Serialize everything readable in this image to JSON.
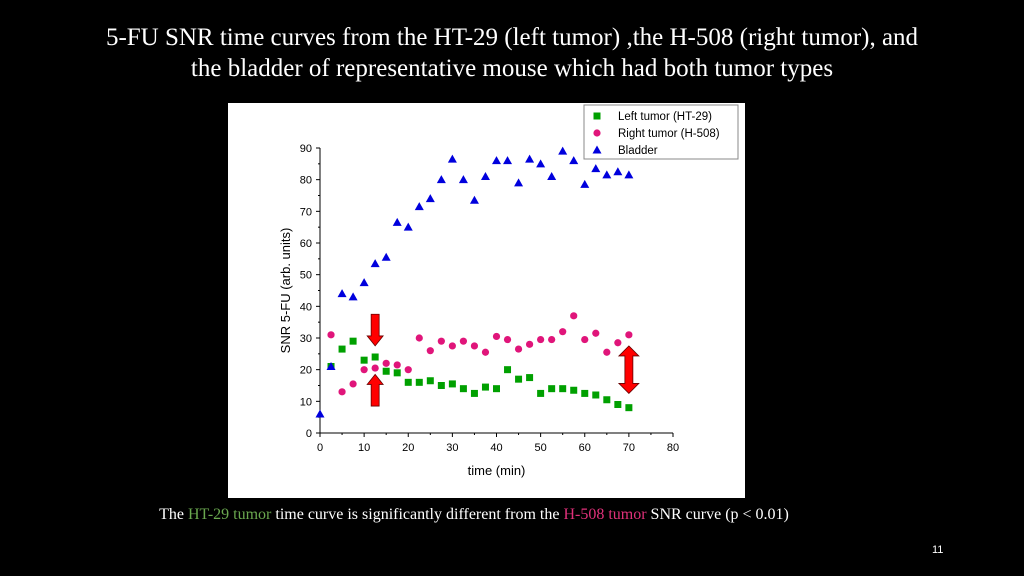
{
  "slide": {
    "title_line1": "5-FU SNR time curves from the HT-29 (left tumor) ,the H-508 (right tumor), and",
    "title_line2": "the bladder of representative mouse which had both tumor types",
    "caption": {
      "prefix": "The ",
      "term1": "HT-29 tumor",
      "middle": " time curve is significantly different from the ",
      "term2": "H-508 tumor",
      "suffix": " SNR curve (p < 0.01)"
    },
    "page_number": "11",
    "colors": {
      "term1": "#6aa84f",
      "term2": "#e0317a"
    }
  },
  "chart_data": {
    "type": "scatter",
    "xlabel": "time (min)",
    "ylabel": "SNR 5-FU (arb. units)",
    "xlim": [
      0,
      80
    ],
    "ylim": [
      0,
      90
    ],
    "xticks": [
      0,
      10,
      20,
      30,
      40,
      50,
      60,
      70,
      80
    ],
    "yticks": [
      0,
      10,
      20,
      30,
      40,
      50,
      60,
      70,
      80,
      90
    ],
    "legend_position": "top-right",
    "series": [
      {
        "name": "Left tumor (HT-29)",
        "marker": "square",
        "color": "#00a000",
        "points": [
          [
            2.5,
            21
          ],
          [
            5,
            26.5
          ],
          [
            7.5,
            29
          ],
          [
            10,
            23
          ],
          [
            12.5,
            24
          ],
          [
            15,
            19.5
          ],
          [
            17.5,
            19
          ],
          [
            20,
            16
          ],
          [
            22.5,
            16
          ],
          [
            25,
            16.5
          ],
          [
            27.5,
            15
          ],
          [
            30,
            15.5
          ],
          [
            32.5,
            14
          ],
          [
            35,
            12.5
          ],
          [
            37.5,
            14.5
          ],
          [
            40,
            14
          ],
          [
            42.5,
            20
          ],
          [
            45,
            17
          ],
          [
            47.5,
            17.5
          ],
          [
            50,
            12.5
          ],
          [
            52.5,
            14
          ],
          [
            55,
            14
          ],
          [
            57.5,
            13.5
          ],
          [
            60,
            12.5
          ],
          [
            62.5,
            12
          ],
          [
            65,
            10.5
          ],
          [
            67.5,
            9
          ],
          [
            70,
            8
          ]
        ]
      },
      {
        "name": "Right tumor (H-508)",
        "marker": "circle",
        "color": "#e0157a",
        "points": [
          [
            2.5,
            31
          ],
          [
            5,
            13
          ],
          [
            7.5,
            15.5
          ],
          [
            10,
            20
          ],
          [
            12.5,
            20.5
          ],
          [
            15,
            22
          ],
          [
            17.5,
            21.5
          ],
          [
            20,
            20
          ],
          [
            22.5,
            30
          ],
          [
            25,
            26
          ],
          [
            27.5,
            29
          ],
          [
            30,
            27.5
          ],
          [
            32.5,
            29
          ],
          [
            35,
            27.5
          ],
          [
            37.5,
            25.5
          ],
          [
            40,
            30.5
          ],
          [
            42.5,
            29.5
          ],
          [
            45,
            26.5
          ],
          [
            47.5,
            28
          ],
          [
            50,
            29.5
          ],
          [
            52.5,
            29.5
          ],
          [
            55,
            32
          ],
          [
            57.5,
            37
          ],
          [
            60,
            29.5
          ],
          [
            62.5,
            31.5
          ],
          [
            65,
            25.5
          ],
          [
            67.5,
            28.5
          ],
          [
            70,
            31
          ]
        ]
      },
      {
        "name": "Bladder",
        "marker": "triangle",
        "color": "#0000dd",
        "points": [
          [
            0,
            6
          ],
          [
            2.5,
            21
          ],
          [
            5,
            44
          ],
          [
            7.5,
            43
          ],
          [
            10,
            47.5
          ],
          [
            12.5,
            53.5
          ],
          [
            15,
            55.5
          ],
          [
            17.5,
            66.5
          ],
          [
            20,
            65
          ],
          [
            22.5,
            71.5
          ],
          [
            25,
            74
          ],
          [
            27.5,
            80
          ],
          [
            30,
            86.5
          ],
          [
            32.5,
            80
          ],
          [
            35,
            73.5
          ],
          [
            37.5,
            81
          ],
          [
            40,
            86
          ],
          [
            42.5,
            86
          ],
          [
            45,
            79
          ],
          [
            47.5,
            86.5
          ],
          [
            50,
            85
          ],
          [
            52.5,
            81
          ],
          [
            55,
            89
          ],
          [
            57.5,
            86
          ],
          [
            60,
            78.5
          ],
          [
            62.5,
            83.5
          ],
          [
            65,
            81.5
          ],
          [
            67.5,
            82.5
          ],
          [
            70,
            81.5
          ]
        ]
      }
    ],
    "annotations": [
      {
        "type": "arrow",
        "direction": "down",
        "x": 12.5,
        "y_from": 37.5,
        "y_to": 27.5,
        "color": "#ff0000"
      },
      {
        "type": "arrow",
        "direction": "up",
        "x": 12.5,
        "y_from": 8.5,
        "y_to": 18.5,
        "color": "#ff0000"
      },
      {
        "type": "double-arrow",
        "x": 70,
        "y_from": 12.5,
        "y_to": 27.5,
        "color": "#ff0000"
      }
    ]
  }
}
